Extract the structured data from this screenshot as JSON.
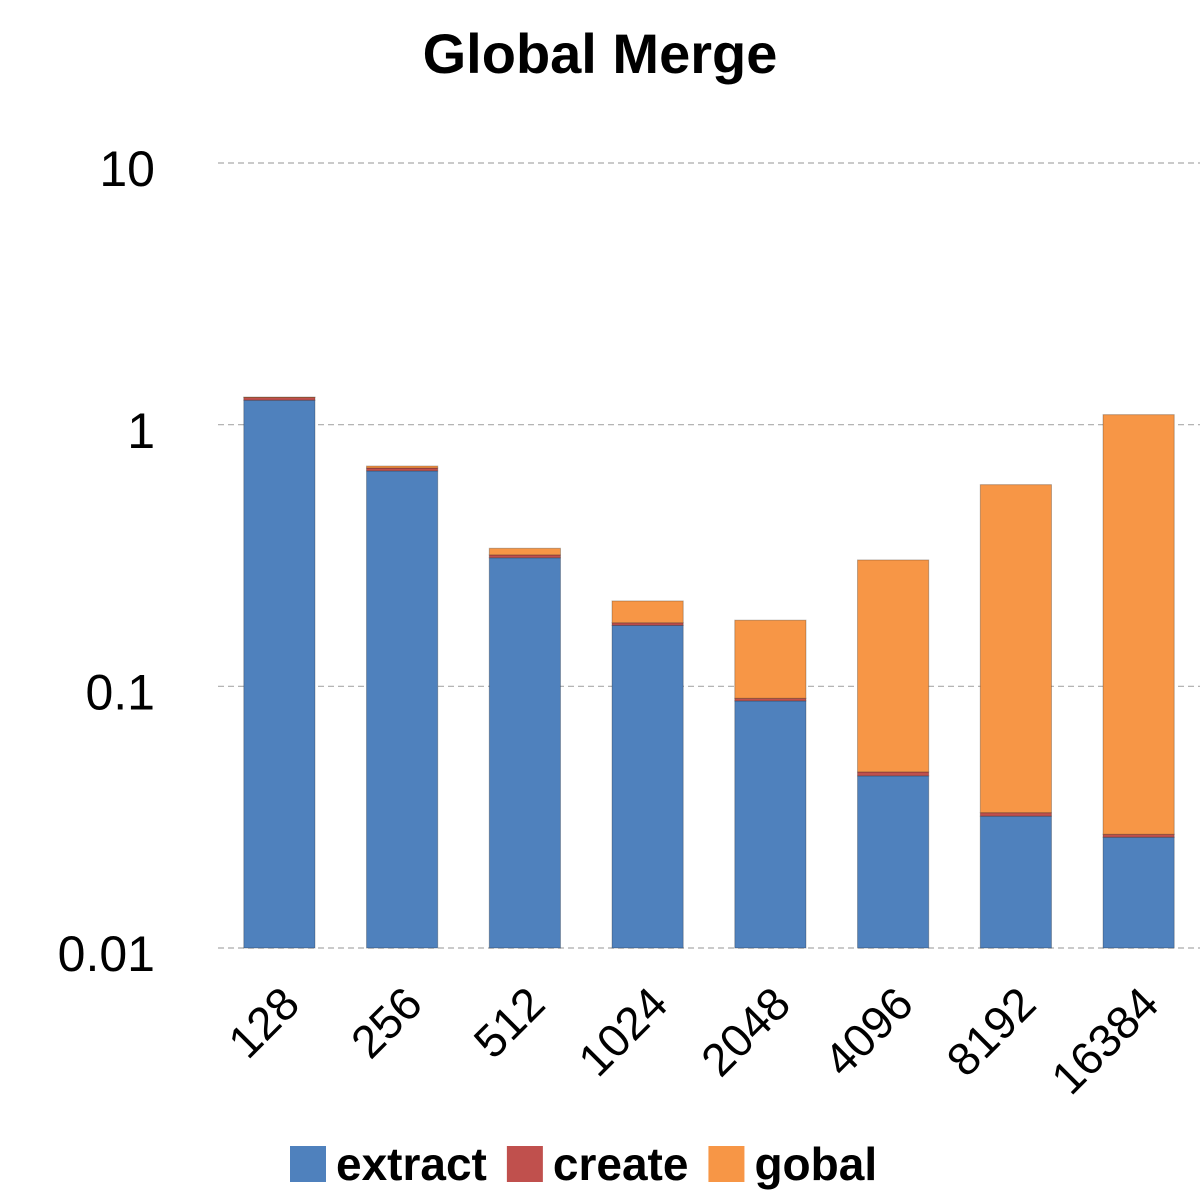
{
  "chart_data": {
    "type": "bar",
    "stacked": true,
    "title": "Global  Merge",
    "categories": [
      "128",
      "256",
      "512",
      "1024",
      "2048",
      "4096",
      "8192",
      "16384"
    ],
    "series": [
      {
        "name": "extract",
        "color": "#4f81bd",
        "values": [
          1.23,
          0.656,
          0.3,
          0.161,
          0.078,
          0.0355,
          0.0219,
          0.0165
        ]
      },
      {
        "name": "create",
        "color": "#c0504d",
        "values": [
          0.03,
          0.017,
          0.008,
          0.004,
          0.002,
          0.0016,
          0.001,
          0.0007
        ]
      },
      {
        "name": "gobal",
        "color": "#f79646",
        "values": [
          0.005,
          0.012,
          0.019,
          0.037,
          0.089,
          0.257,
          0.557,
          1.065
        ]
      }
    ],
    "ylim": [
      0.01,
      10
    ],
    "yticks": [
      0.01,
      0.1,
      1,
      10
    ],
    "log_scale": true,
    "grid": true,
    "legend": "bottom"
  }
}
